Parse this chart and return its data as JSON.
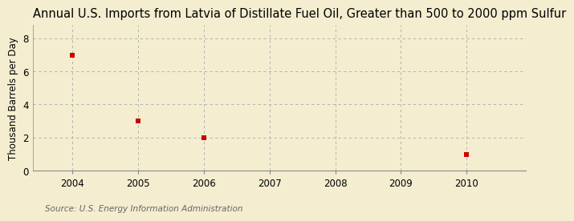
{
  "title": "Annual U.S. Imports from Latvia of Distillate Fuel Oil, Greater than 500 to 2000 ppm Sulfur",
  "ylabel": "Thousand Barrels per Day",
  "source": "Source: U.S. Energy Information Administration",
  "data_years": [
    2004,
    2005,
    2006,
    2010
  ],
  "data_values": [
    6.95,
    3.0,
    2.0,
    1.0
  ],
  "xlim": [
    2003.4,
    2010.9
  ],
  "ylim": [
    0,
    8.8
  ],
  "yticks": [
    0,
    2,
    4,
    6,
    8
  ],
  "xticks": [
    2004,
    2005,
    2006,
    2007,
    2008,
    2009,
    2010
  ],
  "background_color": "#F5EDD0",
  "plot_bg_color": "#F5EDD0",
  "marker_color": "#CC0000",
  "marker_size": 5,
  "grid_color": "#AAAAAA",
  "title_fontsize": 10.5,
  "label_fontsize": 8.5,
  "tick_fontsize": 8.5,
  "source_fontsize": 7.5
}
